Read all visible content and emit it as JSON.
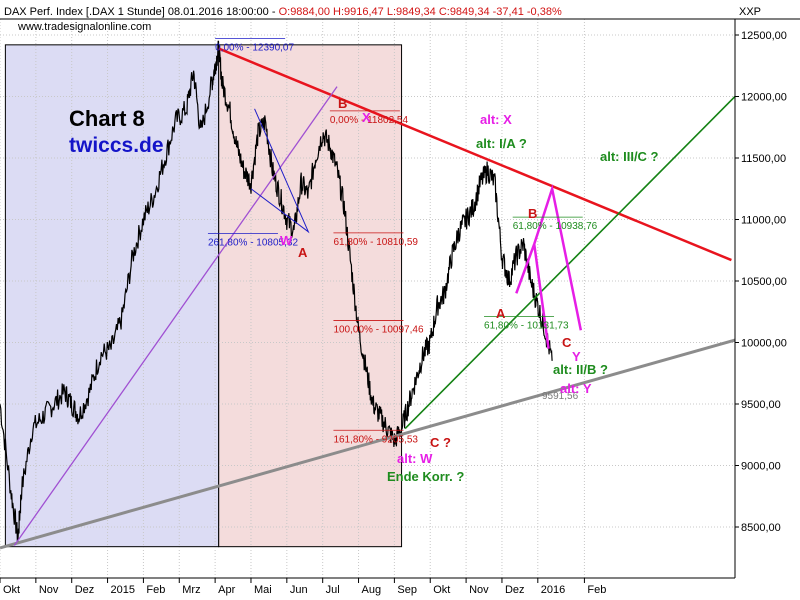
{
  "header": {
    "instrument": "DAX Perf. Index [.DAX  1 Stunde] 08.01.2016 18:00:00 - ",
    "ohlc": "O:9884,00 H:9916,47 L:9849,34 C:9849,34 -37,41 -0,38%",
    "source": "www.tradesignalonline.com",
    "axis_symbol": "XXP"
  },
  "branding": {
    "chart_label": "Chart 8",
    "site": "twiccs.de"
  },
  "colors": {
    "price": "#000000",
    "blue_zone": "#dcdcf4",
    "red_zone": "#f4dcdc",
    "red_line": "#e8141e",
    "green_line": "#148214",
    "gray_line": "#8c8c8c",
    "purple_line": "#a050d2",
    "magenta": "#e61ee6",
    "fib_blue": "#1e1ec8",
    "fib_red": "#c81414",
    "fib_green": "#1e8c1e"
  },
  "chart_data": {
    "type": "line",
    "title": "",
    "xlabel": "",
    "ylabel": "",
    "ylim": [
      8200,
      12600
    ],
    "y_ticks": [
      "12500,00",
      "12000,00",
      "11500,00",
      "11000,00",
      "10500,00",
      "10000,00",
      "9500,00",
      "9000,00",
      "8500,00"
    ],
    "y_tick_values": [
      12500,
      12000,
      11500,
      11000,
      10500,
      10000,
      9500,
      9000,
      8500
    ],
    "x_ticks": [
      "Okt",
      "Nov",
      "Dez",
      "2015",
      "Feb",
      "Mrz",
      "Apr",
      "Mai",
      "Jun",
      "Jul",
      "Aug",
      "Sep",
      "Okt",
      "Nov",
      "Dez",
      "2016",
      "Feb"
    ],
    "x_tick_months": [
      0,
      1,
      2,
      3,
      4,
      5,
      6,
      7,
      8,
      9,
      10,
      11,
      12,
      13,
      14,
      15,
      16.3
    ],
    "xlim_months": [
      0,
      20.5
    ],
    "zones": [
      {
        "name": "blue-zone",
        "x0": 0.15,
        "x1": 6.1
      },
      {
        "name": "red-zone",
        "x0": 6.1,
        "x1": 11.2
      }
    ],
    "series": [
      {
        "values_note": "hourly",
        "x": [
          0.0,
          0.3,
          0.5,
          0.6,
          0.9,
          1.2,
          1.5,
          1.8,
          2.0,
          2.2,
          2.5,
          2.8,
          3.1,
          3.4,
          3.7,
          4.0,
          4.3,
          4.6,
          4.9,
          5.2,
          5.4,
          5.6,
          5.9,
          6.0,
          6.1,
          6.2,
          6.4,
          6.6,
          6.8,
          7.0,
          7.2,
          7.4,
          7.6,
          7.8,
          8.0,
          8.2,
          8.4,
          8.6,
          8.8,
          9.0,
          9.2,
          9.4,
          9.6,
          9.8,
          10.0,
          10.2,
          10.4,
          10.6,
          10.8,
          11.0,
          11.2,
          11.4,
          11.6,
          11.8,
          12.0,
          12.2,
          12.4,
          12.6,
          12.8,
          13.0,
          13.2,
          13.4,
          13.6,
          13.8,
          14.0,
          14.2,
          14.4,
          14.6,
          14.8,
          15.0,
          15.2,
          15.4
        ],
        "values": [
          9500,
          8800,
          8400,
          8800,
          9300,
          9400,
          9500,
          9600,
          9500,
          9400,
          9600,
          9900,
          9950,
          10200,
          10700,
          11000,
          11200,
          11500,
          11800,
          11900,
          12200,
          11700,
          12100,
          12250,
          12390,
          12100,
          11900,
          11600,
          11400,
          11300,
          11700,
          11800,
          11400,
          11200,
          11000,
          10900,
          11300,
          11200,
          11500,
          11700,
          11600,
          11400,
          11100,
          10600,
          10100,
          9800,
          9500,
          9400,
          9300,
          9200,
          9300,
          9500,
          9700,
          9900,
          10000,
          10300,
          10400,
          10700,
          10900,
          11000,
          11100,
          11300,
          11400,
          11300,
          10700,
          10500,
          10700,
          10800,
          10500,
          10300,
          10100,
          9850
        ]
      }
    ],
    "trendlines": [
      {
        "name": "red-resistance",
        "x": [
          6.1,
          20.4
        ],
        "y": [
          12390,
          10670
        ]
      },
      {
        "name": "green-support",
        "x": [
          11.3,
          20.5
        ],
        "y": [
          9300,
          12000
        ]
      },
      {
        "name": "gray-support",
        "x": [
          0.0,
          20.5
        ],
        "y": [
          8330,
          10020
        ]
      },
      {
        "name": "purple-line",
        "x": [
          0.4,
          9.4
        ],
        "y": [
          8350,
          12080
        ]
      }
    ],
    "fib_labels": [
      {
        "text": "0,00% - 12390,07",
        "x": 6.0,
        "y": 12390,
        "color": "blue"
      },
      {
        "text": "0,00% - 11802,54",
        "x": 9.2,
        "y": 11802,
        "color": "red"
      },
      {
        "text": "261,80% - 10805,32",
        "x": 5.8,
        "y": 10805,
        "color": "blue"
      },
      {
        "text": "61,80% - 10810,59",
        "x": 9.3,
        "y": 10810,
        "color": "red"
      },
      {
        "text": "100,00% - 10097,46",
        "x": 9.3,
        "y": 10097,
        "color": "red"
      },
      {
        "text": "161,80% - 9205,53",
        "x": 9.3,
        "y": 9205,
        "color": "red"
      },
      {
        "text": "61,80% - 10938,76",
        "x": 14.3,
        "y": 10938,
        "color": "green"
      },
      {
        "text": "61,80% - 10131,73",
        "x": 13.5,
        "y": 10131,
        "color": "green"
      }
    ],
    "price_label": {
      "text": "9591,56",
      "y": 9591
    },
    "annotations": [
      {
        "text": "B",
        "color": "red"
      },
      {
        "text": "X",
        "color": "magenta"
      },
      {
        "text": "W",
        "color": "magenta"
      },
      {
        "text": "A",
        "color": "red"
      },
      {
        "text": "alt: X",
        "color": "magenta"
      },
      {
        "text": "alt: I/A ?",
        "color": "green"
      },
      {
        "text": "alt: III/C ?",
        "color": "green"
      },
      {
        "text": "B",
        "color": "red"
      },
      {
        "text": "A",
        "color": "red"
      },
      {
        "text": "C",
        "color": "red"
      },
      {
        "text": "Y",
        "color": "magenta"
      },
      {
        "text": "alt: II/B ?",
        "color": "green"
      },
      {
        "text": "alt: Y",
        "color": "magenta"
      },
      {
        "text": "C ?",
        "color": "red"
      },
      {
        "text": "alt: W",
        "color": "magenta"
      },
      {
        "text": "Ende Korr. ?",
        "color": "green"
      }
    ]
  }
}
